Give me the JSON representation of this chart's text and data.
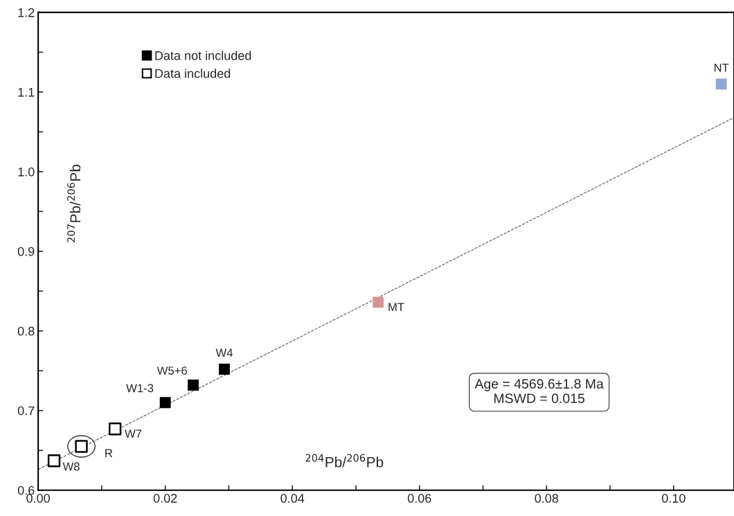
{
  "chart_data": {
    "type": "scatter",
    "xlabel": "$^{204}$Pb/$^{206}$Pb",
    "ylabel": "$^{207}$Pb/$^{206}$Pb",
    "xlim": [
      0,
      0.1095
    ],
    "ylim": [
      0.6,
      1.2
    ],
    "xticks": [
      {
        "value": 0,
        "label": "0.00"
      },
      {
        "value": 0.01,
        "label": null
      },
      {
        "value": 0.02,
        "label": "0.02"
      },
      {
        "value": 0.03,
        "label": null
      },
      {
        "value": 0.04,
        "label": "0.04"
      },
      {
        "value": 0.05,
        "label": null
      },
      {
        "value": 0.06,
        "label": "0.06"
      },
      {
        "value": 0.07,
        "label": null
      },
      {
        "value": 0.08,
        "label": "0.08"
      },
      {
        "value": 0.09,
        "label": null
      },
      {
        "value": 0.1,
        "label": "0.10"
      }
    ],
    "yticks": [
      {
        "value": 0.6,
        "label": "0.6"
      },
      {
        "value": 0.65,
        "label": null
      },
      {
        "value": 0.7,
        "label": "0.7"
      },
      {
        "value": 0.75,
        "label": null
      },
      {
        "value": 0.8,
        "label": "0.8"
      },
      {
        "value": 0.85,
        "label": null
      },
      {
        "value": 0.9,
        "label": "0.9"
      },
      {
        "value": 0.95,
        "label": null
      },
      {
        "value": 1.0,
        "label": "1.0"
      },
      {
        "value": 1.05,
        "label": null
      },
      {
        "value": 1.1,
        "label": "1.1"
      },
      {
        "value": 1.15,
        "label": null
      },
      {
        "value": 1.2,
        "label": "1.2"
      }
    ],
    "grid": false,
    "legend": "top left",
    "marker": "square",
    "series": [
      {
        "name": "Data not included",
        "color": "#000000",
        "x": [
          0.02,
          0.0244,
          0.0293
        ],
        "values": [
          0.71,
          0.732,
          0.752
        ]
      },
      {
        "name": "Data included",
        "color": "#ffffff",
        "x": [
          0.0025,
          0.0068,
          0.0121
        ],
        "values": [
          0.637,
          0.655,
          0.677
        ]
      },
      {
        "color": "#d49494",
        "x": [
          0.0535
        ],
        "values": [
          0.836
        ]
      },
      {
        "color": "#8fa8d4",
        "x": [
          0.1075
        ],
        "values": [
          1.11
        ]
      },
      {
        "type": "line",
        "marker": "none",
        "line_style": "dashed",
        "color": "#555555",
        "x": [
          0,
          0.1095
        ],
        "values": [
          0.626,
          1.068
        ]
      }
    ],
    "annotations": [
      {
        "text": "W8",
        "x": 0.0025,
        "y": 0.637
      },
      {
        "text": "R",
        "x": 0.0068,
        "y": 0.655
      },
      {
        "text": "W7",
        "x": 0.0121,
        "y": 0.677
      },
      {
        "text": "W1-3",
        "x": 0.02,
        "y": 0.71
      },
      {
        "text": "W5+6",
        "x": 0.0244,
        "y": 0.732
      },
      {
        "text": "W4",
        "x": 0.0293,
        "y": 0.752
      },
      {
        "text": "MT",
        "x": 0.0535,
        "y": 0.836
      },
      {
        "text": "NT",
        "x": 0.1075,
        "y": 1.11
      },
      "Age = 4569.6±1.8 Ma\nMSWD = 0.015"
    ]
  }
}
